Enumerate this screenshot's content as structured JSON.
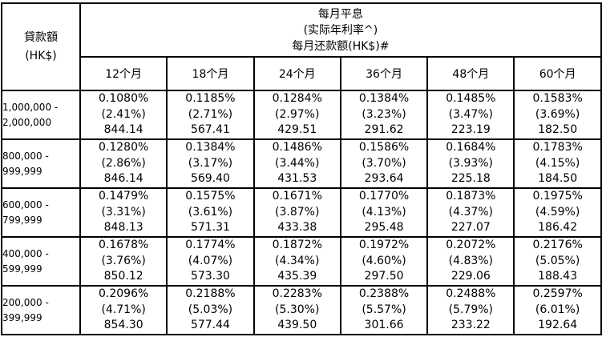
{
  "header": {
    "amount_label": "貸款額",
    "amount_unit": "(HK$)",
    "top_line1": "每月平息",
    "top_line2": "(实际年利率^)",
    "top_line3": "每月还款额(HK$)#",
    "terms": [
      "12个月",
      "18个月",
      "24个月",
      "36个月",
      "48个月",
      "60个月"
    ]
  },
  "rows": [
    {
      "range_line1": "1,000,000 -",
      "range_line2": "2,000,000",
      "cells": [
        {
          "flat": "0.1080%",
          "apr": "(2.41%)",
          "payment": "844.14"
        },
        {
          "flat": "0.1185%",
          "apr": "(2.71%)",
          "payment": "567.41"
        },
        {
          "flat": "0.1284%",
          "apr": "(2.97%)",
          "payment": "429.51"
        },
        {
          "flat": "0.1384%",
          "apr": "(3.23%)",
          "payment": "291.62"
        },
        {
          "flat": "0.1485%",
          "apr": "(3.47%)",
          "payment": "223.19"
        },
        {
          "flat": "0.1583%",
          "apr": "(3.69%)",
          "payment": "182.50"
        }
      ]
    },
    {
      "range_line1": "800,000 -",
      "range_line2": "999,999",
      "cells": [
        {
          "flat": "0.1280%",
          "apr": "(2.86%)",
          "payment": "846.14"
        },
        {
          "flat": "0.1384%",
          "apr": "(3.17%)",
          "payment": "569.40"
        },
        {
          "flat": "0.1486%",
          "apr": "(3.44%)",
          "payment": "431.53"
        },
        {
          "flat": "0.1586%",
          "apr": "(3.70%)",
          "payment": "293.64"
        },
        {
          "flat": "0.1684%",
          "apr": "(3.93%)",
          "payment": "225.18"
        },
        {
          "flat": "0.1783%",
          "apr": "(4.15%)",
          "payment": "184.50"
        }
      ]
    },
    {
      "range_line1": "600,000 -",
      "range_line2": "799,999",
      "cells": [
        {
          "flat": "0.1479%",
          "apr": "(3.31%)",
          "payment": "848.13"
        },
        {
          "flat": "0.1575%",
          "apr": "(3.61%)",
          "payment": "571.31"
        },
        {
          "flat": "0.1671%",
          "apr": "(3.87%)",
          "payment": "433.38"
        },
        {
          "flat": "0.1770%",
          "apr": "(4.13%)",
          "payment": "295.48"
        },
        {
          "flat": "0.1873%",
          "apr": "(4.37%)",
          "payment": "227.07"
        },
        {
          "flat": "0.1975%",
          "apr": "(4.59%)",
          "payment": "186.42"
        }
      ]
    },
    {
      "range_line1": "400,000 -",
      "range_line2": "599,999",
      "cells": [
        {
          "flat": "0.1678%",
          "apr": "(3.76%)",
          "payment": "850.12"
        },
        {
          "flat": "0.1774%",
          "apr": "(4.07%)",
          "payment": "573.30"
        },
        {
          "flat": "0.1872%",
          "apr": "(4.34%)",
          "payment": "435.39"
        },
        {
          "flat": "0.1972%",
          "apr": "(4.60%)",
          "payment": "297.50"
        },
        {
          "flat": "0.2072%",
          "apr": "(4.83%)",
          "payment": "229.06"
        },
        {
          "flat": "0.2176%",
          "apr": "(5.05%)",
          "payment": "188.43"
        }
      ]
    },
    {
      "range_line1": "200,000 -",
      "range_line2": "399,999",
      "cells": [
        {
          "flat": "0.2096%",
          "apr": "(4.71%)",
          "payment": "854.30"
        },
        {
          "flat": "0.2188%",
          "apr": "(5.03%)",
          "payment": "577.44"
        },
        {
          "flat": "0.2283%",
          "apr": "(5.30%)",
          "payment": "439.50"
        },
        {
          "flat": "0.2388%",
          "apr": "(5.57%)",
          "payment": "301.66"
        },
        {
          "flat": "0.2488%",
          "apr": "(5.79%)",
          "payment": "233.22"
        },
        {
          "flat": "0.2597%",
          "apr": "(6.01%)",
          "payment": "192.64"
        }
      ]
    }
  ]
}
